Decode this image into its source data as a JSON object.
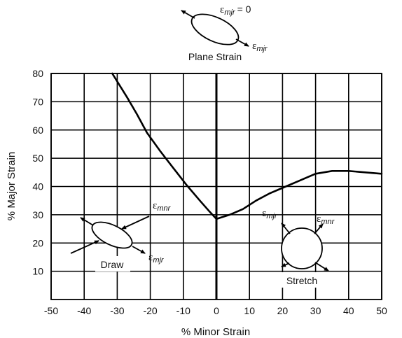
{
  "chart_data": {
    "type": "line",
    "title": "",
    "xlabel": "% Minor Strain",
    "ylabel": "% Major Strain",
    "xlim": [
      -50,
      50
    ],
    "ylim": [
      0,
      80
    ],
    "x_ticks": [
      "-50",
      "-40",
      "-30",
      "-20",
      "-10",
      "0",
      "10",
      "20",
      "30",
      "40",
      "50"
    ],
    "y_ticks": [
      "10",
      "20",
      "30",
      "40",
      "50",
      "60",
      "70",
      "80"
    ],
    "grid": true,
    "series": [
      {
        "x": [
          -31.5,
          -27,
          -24,
          -21,
          -17,
          -13,
          -9,
          -5,
          -2,
          0,
          4,
          8,
          12,
          16,
          20,
          25,
          30,
          35,
          40,
          45,
          50
        ],
        "y": [
          80,
          71.5,
          65.5,
          59,
          52.5,
          46.5,
          40.5,
          35,
          31,
          28.5,
          30,
          32,
          35,
          37.5,
          39.5,
          42,
          44.5,
          45.5,
          45.5,
          45,
          44.5
        ]
      }
    ],
    "annotations": {
      "plane_strain": {
        "label": "Plane Strain",
        "eps_symbol": "ε",
        "eps_sub_major": "mjr",
        "eps_eq": "= 0"
      },
      "draw": {
        "label": "Draw",
        "eps_symbol": "ε",
        "eps_sub_minor": "mnr",
        "eps_sub_major": "mjr"
      },
      "stretch": {
        "label": "Stretch",
        "eps_symbol": "ε",
        "eps_sub_major": "mjr",
        "eps_sub_minor": "mnr"
      }
    },
    "colors": {
      "line": "#000000",
      "grid": "#000000",
      "background": "#ffffff"
    }
  }
}
